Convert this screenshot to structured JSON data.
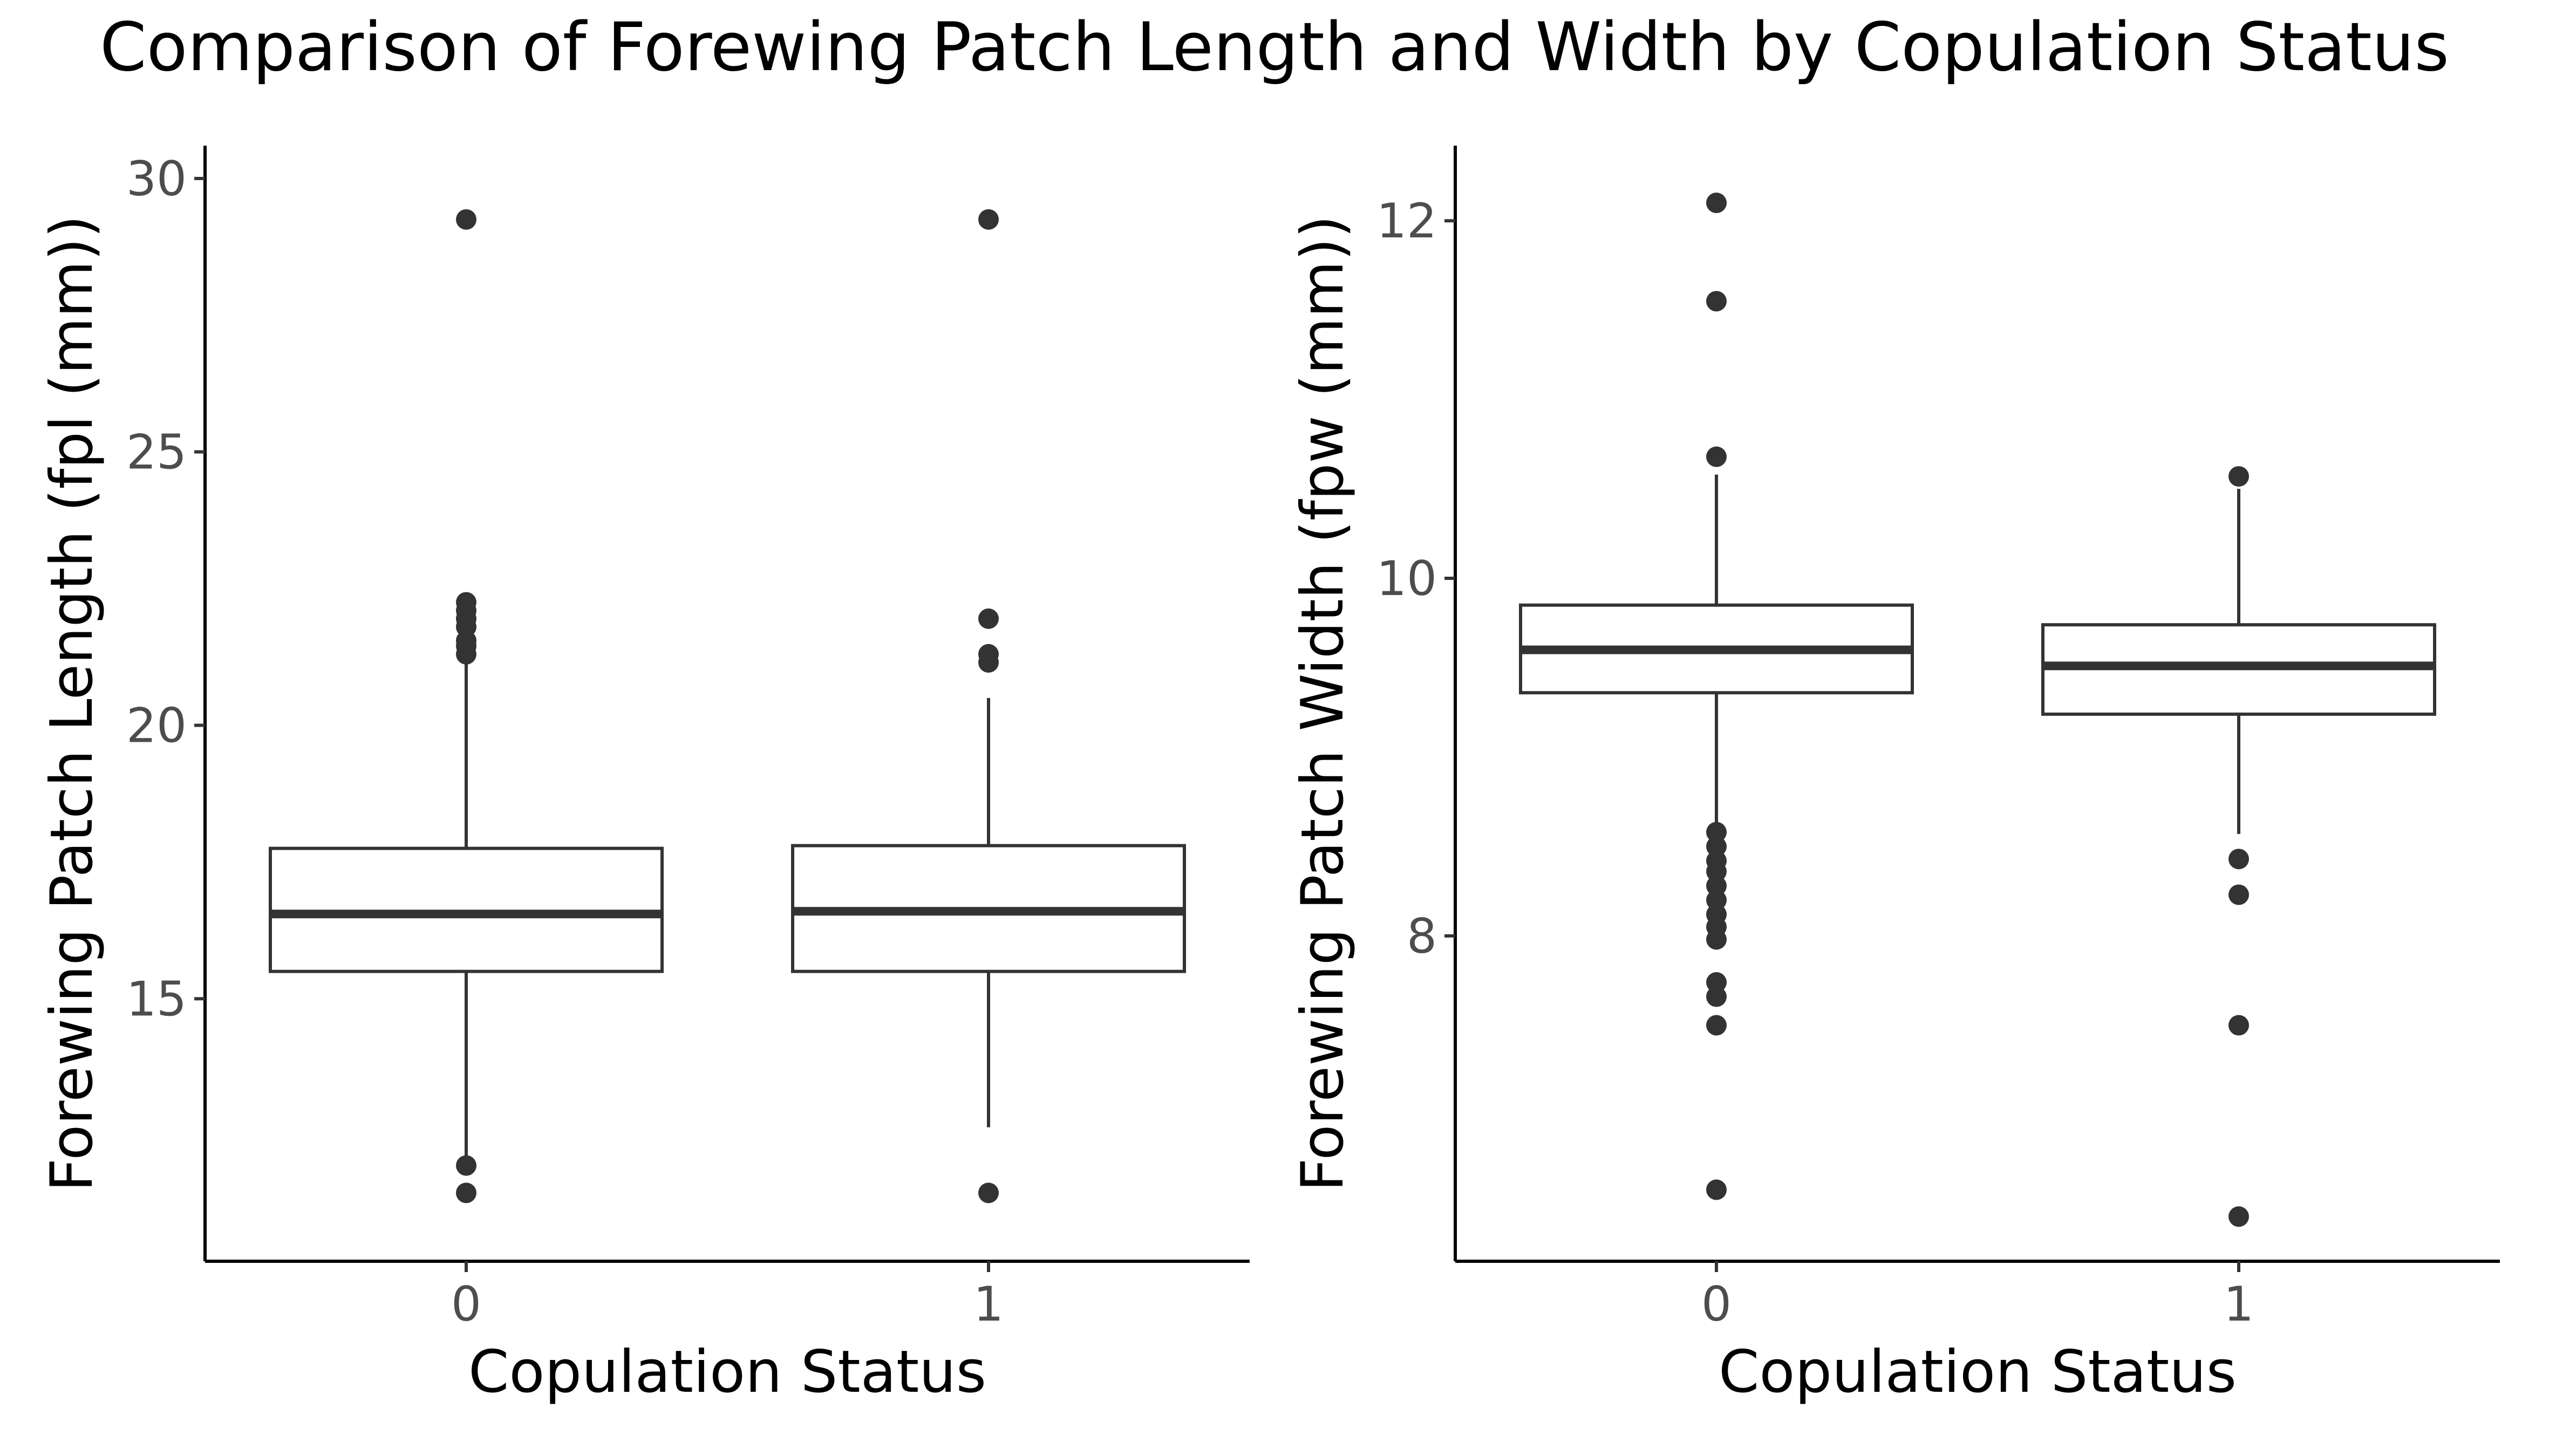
{
  "title": "Comparison of Forewing Patch Length and Width by Copulation Status",
  "chart_data": [
    {
      "type": "boxplot",
      "xlabel": "Copulation Status",
      "ylabel": "Forewing Patch Length (fpl (mm))",
      "categories": [
        "0",
        "1"
      ],
      "ylim": [
        10.2,
        30.6
      ],
      "yticks": [
        15,
        20,
        25,
        30
      ],
      "grid": false,
      "boxes": [
        {
          "category": "0",
          "whisker_low": 12.1,
          "q1": 15.5,
          "median": 16.55,
          "q3": 17.75,
          "whisker_high": 21.2,
          "outliers": [
            11.45,
            11.95,
            21.3,
            21.45,
            21.55,
            21.8,
            21.95,
            22.1,
            22.25,
            29.25
          ]
        },
        {
          "category": "1",
          "whisker_low": 12.65,
          "q1": 15.5,
          "median": 16.6,
          "q3": 17.8,
          "whisker_high": 20.5,
          "outliers": [
            11.45,
            21.15,
            21.3,
            21.95,
            29.25
          ]
        }
      ]
    },
    {
      "type": "boxplot",
      "xlabel": "Copulation Status",
      "ylabel": "Forewing Patch Width (fpw (mm))",
      "categories": [
        "0",
        "1"
      ],
      "ylim": [
        6.18,
        12.42
      ],
      "yticks": [
        8,
        10,
        12
      ],
      "grid": false,
      "boxes": [
        {
          "category": "0",
          "whisker_low": 8.62,
          "q1": 9.36,
          "median": 9.6,
          "q3": 9.85,
          "whisker_high": 10.58,
          "outliers": [
            6.58,
            7.5,
            7.66,
            7.74,
            7.98,
            8.05,
            8.12,
            8.2,
            8.28,
            8.36,
            8.42,
            8.5,
            8.58,
            10.68,
            11.55,
            12.1
          ]
        },
        {
          "category": "1",
          "whisker_low": 8.57,
          "q1": 9.24,
          "median": 9.51,
          "q3": 9.74,
          "whisker_high": 10.5,
          "outliers": [
            6.43,
            7.5,
            8.23,
            8.43,
            10.57
          ]
        }
      ]
    }
  ]
}
